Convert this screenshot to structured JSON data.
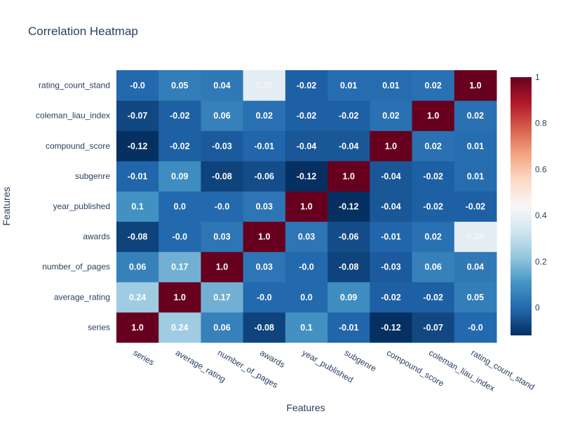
{
  "chart_data": {
    "type": "heatmap",
    "title": "Correlation Heatmap",
    "xlabel": "Features",
    "ylabel": "Features",
    "x_categories": [
      "series",
      "average_rating",
      "number_of_pages",
      "awards",
      "year_published",
      "subgenre",
      "compound_score",
      "coleman_liau_index",
      "rating_count_stand"
    ],
    "y_categories": [
      "series",
      "average_rating",
      "number_of_pages",
      "awards",
      "year_published",
      "subgenre",
      "compound_score",
      "coleman_liau_index",
      "rating_count_stand"
    ],
    "z": [
      [
        1.0,
        0.24,
        0.06,
        -0.08,
        0.1,
        -0.01,
        -0.12,
        -0.07,
        -0.0
      ],
      [
        0.24,
        1.0,
        0.17,
        -0.0,
        0.0,
        0.09,
        -0.02,
        -0.02,
        0.05
      ],
      [
        0.06,
        0.17,
        1.0,
        0.03,
        -0.0,
        -0.08,
        -0.03,
        0.06,
        0.04
      ],
      [
        -0.08,
        -0.0,
        0.03,
        1.0,
        0.03,
        -0.06,
        -0.01,
        0.02,
        0.38
      ],
      [
        0.1,
        0.0,
        -0.0,
        0.03,
        1.0,
        -0.12,
        -0.04,
        -0.02,
        -0.02
      ],
      [
        -0.01,
        0.09,
        -0.08,
        -0.06,
        -0.12,
        1.0,
        -0.04,
        -0.02,
        0.01
      ],
      [
        -0.12,
        -0.02,
        -0.03,
        -0.01,
        -0.04,
        -0.04,
        1.0,
        0.02,
        0.01
      ],
      [
        -0.07,
        -0.02,
        0.06,
        0.02,
        -0.02,
        -0.02,
        0.02,
        1.0,
        0.02
      ],
      [
        -0.0,
        0.05,
        0.04,
        0.38,
        -0.02,
        0.01,
        0.01,
        0.02,
        1.0
      ]
    ],
    "cell_labels": [
      [
        "1.0",
        "0.24",
        "0.06",
        "-0.08",
        "0.1",
        "-0.01",
        "-0.12",
        "-0.07",
        "-0.0"
      ],
      [
        "0.24",
        "1.0",
        "0.17",
        "-0.0",
        "0.0",
        "0.09",
        "-0.02",
        "-0.02",
        "0.05"
      ],
      [
        "0.06",
        "0.17",
        "1.0",
        "0.03",
        "-0.0",
        "-0.08",
        "-0.03",
        "0.06",
        "0.04"
      ],
      [
        "-0.08",
        "-0.0",
        "0.03",
        "1.0",
        "0.03",
        "-0.06",
        "-0.01",
        "0.02",
        "0.38"
      ],
      [
        "0.1",
        "0.0",
        "-0.0",
        "0.03",
        "1.0",
        "-0.12",
        "-0.04",
        "-0.02",
        "-0.02"
      ],
      [
        "-0.01",
        "0.09",
        "-0.08",
        "-0.06",
        "-0.12",
        "1.0",
        "-0.04",
        "-0.02",
        "0.01"
      ],
      [
        "-0.12",
        "-0.02",
        "-0.03",
        "-0.01",
        "-0.04",
        "-0.04",
        "1.0",
        "0.02",
        "0.01"
      ],
      [
        "-0.07",
        "-0.02",
        "0.06",
        "0.02",
        "-0.02",
        "-0.02",
        "0.02",
        "1.0",
        "0.02"
      ],
      [
        "-0.0",
        "0.05",
        "0.04",
        "0.38",
        "-0.02",
        "0.01",
        "0.01",
        "0.02",
        "1.0"
      ]
    ],
    "colorscale": "RdBu reversed",
    "zmin": -0.12,
    "zmax": 1.0,
    "colorbar_ticks": [
      "0",
      "0.2",
      "0.4",
      "0.6",
      "0.8",
      "1"
    ],
    "colorbar_tick_values": [
      0,
      0.2,
      0.4,
      0.6,
      0.8,
      1.0
    ],
    "grid": false,
    "legend": "colorbar-right"
  }
}
